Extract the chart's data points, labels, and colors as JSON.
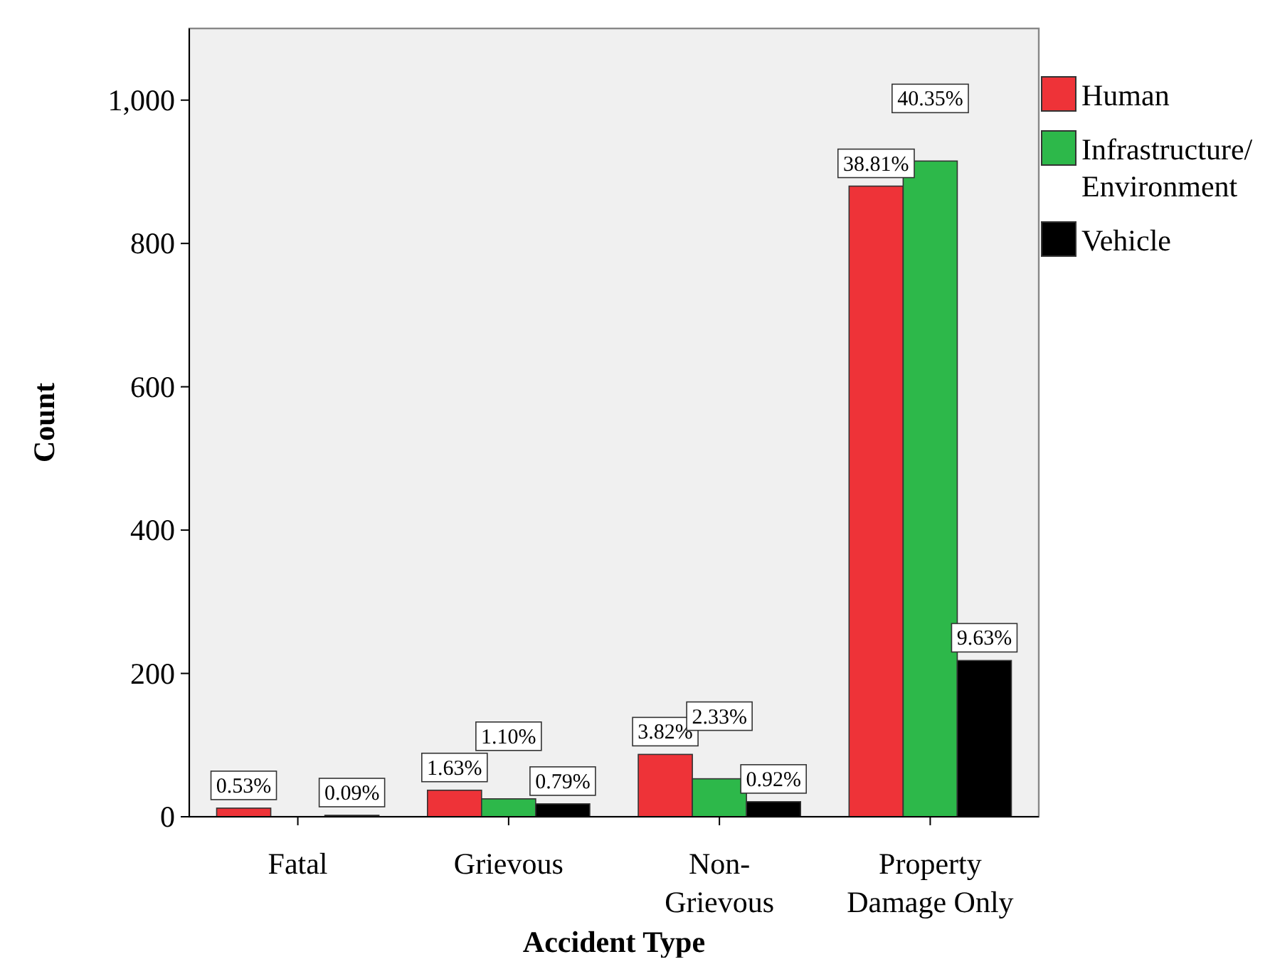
{
  "chart_data": {
    "type": "bar",
    "xlabel": "Accident Type",
    "ylabel": "Count",
    "categories": [
      "Fatal",
      "Grievous",
      "Non-Grievous",
      "Property Damage Only"
    ],
    "series": [
      {
        "name": "Human",
        "color": "#ee3338",
        "values": [
          12,
          37,
          87,
          880
        ]
      },
      {
        "name": "Infrastructure/ Environment",
        "color": "#2db84a",
        "values": [
          0,
          25,
          53,
          915
        ]
      },
      {
        "name": "Vehicle",
        "color": "#000000",
        "values": [
          2,
          18,
          21,
          218
        ]
      }
    ],
    "annotations": [
      "0.53%",
      "0.09%",
      "1.63%",
      "1.10%",
      "0.79%",
      "3.82%",
      "2.33%",
      "0.92%",
      "38.81%",
      "40.35%",
      "9.63%"
    ],
    "ylim": [
      0,
      1100
    ],
    "yticks": [
      0,
      200,
      400,
      600,
      {
        "value": 800,
        "label": "800"
      },
      {
        "value": 1000,
        "label": "1,000"
      }
    ],
    "grid": false,
    "legend": "top right"
  }
}
